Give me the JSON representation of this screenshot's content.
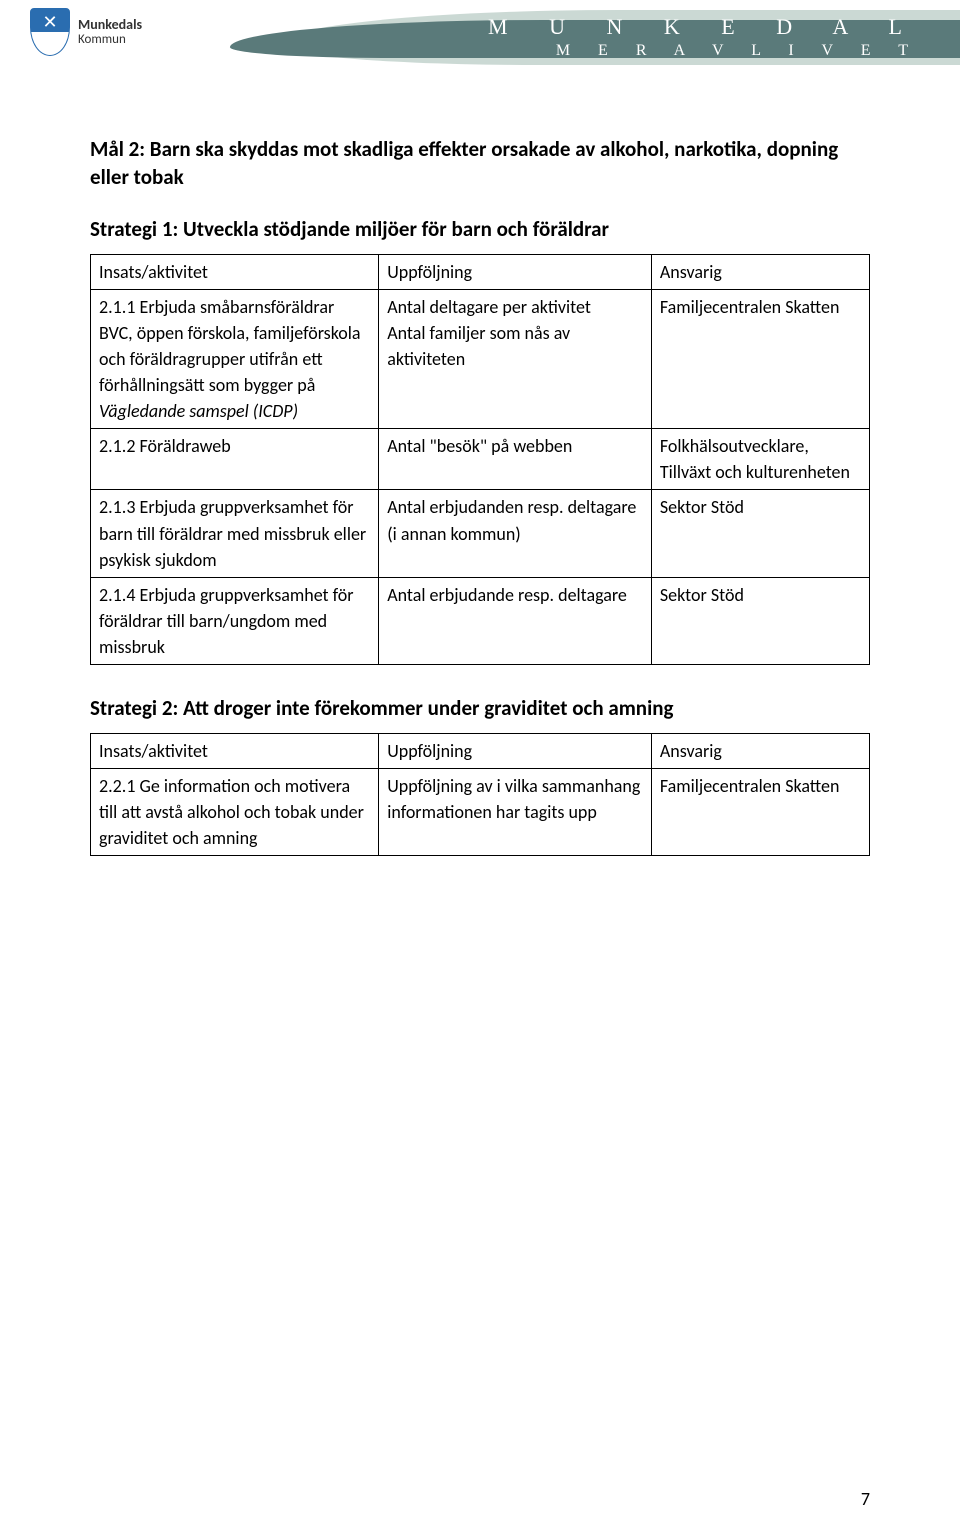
{
  "banner": {
    "logo_name": "Munkedals",
    "logo_sub": "Kommun",
    "title": "M U N K E D A L",
    "subtitle": "M E R  A V  L I V E T"
  },
  "mal_heading": "Mål 2: Barn ska skyddas mot skadliga effekter orsakade av alkohol, narkotika, dopning eller tobak",
  "strategi1": {
    "heading": "Strategi 1: Utveckla stödjande miljöer för barn och föräldrar",
    "columns": [
      "Insats/aktivitet",
      "Uppföljning",
      "Ansvarig"
    ],
    "rows": [
      {
        "c1_pre": "2.1.1 Erbjuda småbarnsföräldrar BVC, öppen förskola, familjeförskola och föräldragrupper utifrån ett förhållningsätt som bygger på ",
        "c1_ital": "Vägledande samspel (ICDP)",
        "c2": "Antal deltagare per aktivitet\nAntal familjer som nås av aktiviteten",
        "c3": "Familjecentralen Skatten"
      },
      {
        "c1": "2.1.2 Föräldraweb",
        "c2": "Antal \"besök\" på webben",
        "c3": "Folkhälsoutvecklare, Tillväxt och kulturenheten"
      },
      {
        "c1": "2.1.3 Erbjuda gruppverksamhet för barn till föräldrar med missbruk eller psykisk sjukdom",
        "c2": "Antal erbjudanden resp. deltagare (i annan kommun)",
        "c3": "Sektor Stöd"
      },
      {
        "c1": "2.1.4 Erbjuda gruppverksamhet för föräldrar till barn/ungdom med missbruk",
        "c2": "Antal erbjudande resp. deltagare",
        "c3": "Sektor Stöd"
      }
    ]
  },
  "strategi2": {
    "heading": "Strategi 2: Att droger inte förekommer under graviditet och amning",
    "columns": [
      "Insats/aktivitet",
      "Uppföljning",
      "Ansvarig"
    ],
    "rows": [
      {
        "c1": "2.2.1 Ge information och motivera till att avstå alkohol och tobak under graviditet och amning",
        "c2": "Uppföljning av i vilka sammanhang informationen har tagits upp",
        "c3": "Familjecentralen Skatten"
      }
    ]
  },
  "page_number": "7",
  "colors": {
    "border": "#000000",
    "text": "#000000",
    "banner_dark": "#5a7a7a",
    "banner_light": "#a8c0b8",
    "shield_blue": "#2a6db0"
  }
}
